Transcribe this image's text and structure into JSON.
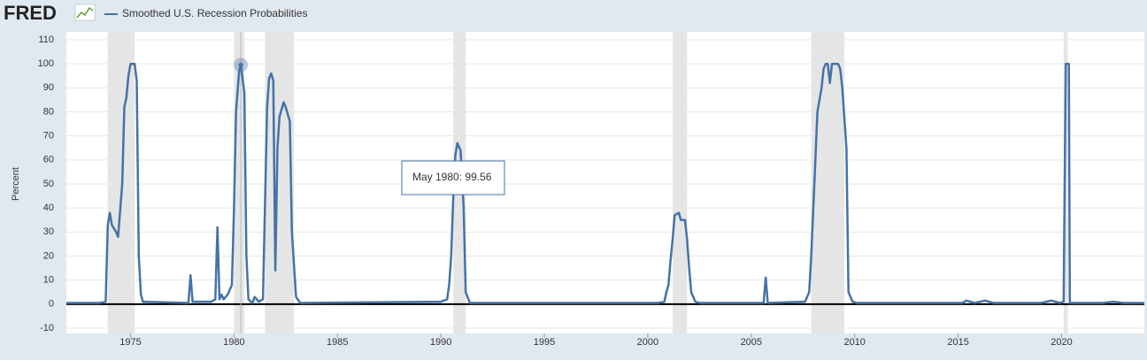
{
  "chart_data": {
    "type": "line",
    "logo": "FRED",
    "y_label": "Percent",
    "x": [
      1971.9,
      1973.5,
      1973.8,
      1973.9,
      1974.0,
      1974.1,
      1974.3,
      1974.4,
      1974.6,
      1974.7,
      1974.8,
      1974.9,
      1975.0,
      1975.2,
      1975.3,
      1975.4,
      1975.5,
      1975.6,
      1977.8,
      1977.9,
      1978.0,
      1978.9,
      1979.1,
      1979.2,
      1979.3,
      1979.4,
      1979.5,
      1979.7,
      1979.9,
      1980.0,
      1980.1,
      1980.25,
      1980.33,
      1980.5,
      1980.6,
      1980.7,
      1980.9,
      1981.0,
      1981.2,
      1981.4,
      1981.6,
      1981.7,
      1981.8,
      1981.9,
      1982.0,
      1982.1,
      1982.2,
      1982.4,
      1982.5,
      1982.7,
      1982.8,
      1983.0,
      1983.2,
      1990.0,
      1990.3,
      1990.4,
      1990.5,
      1990.6,
      1990.7,
      1990.8,
      1990.95,
      1991.1,
      1991.2,
      1991.4,
      2000.5,
      2000.8,
      2000.9,
      2001.0,
      2001.1,
      2001.2,
      2001.3,
      2001.5,
      2001.6,
      2001.8,
      2001.9,
      2002.0,
      2002.1,
      2002.3,
      2002.5,
      2005.6,
      2005.7,
      2005.8,
      2007.6,
      2007.8,
      2007.9,
      2008.1,
      2008.2,
      2008.4,
      2008.5,
      2008.6,
      2008.7,
      2008.8,
      2008.9,
      2009.2,
      2009.3,
      2009.4,
      2009.6,
      2009.7,
      2009.9,
      2010.1,
      2015.2,
      2015.4,
      2015.8,
      2016.3,
      2016.7,
      2019.0,
      2019.5,
      2019.9,
      2020.1,
      2020.2,
      2020.35,
      2020.4,
      2022.0,
      2022.5,
      2023.0,
      2024.0
    ],
    "series": [
      {
        "name": "Smoothed U.S. Recession Probabilities",
        "color": "#4572a7",
        "values": [
          0.5,
          0.5,
          1,
          33,
          38,
          33,
          30,
          28,
          50,
          82,
          86,
          95,
          100,
          100,
          93,
          20,
          4,
          1,
          0.5,
          12,
          1,
          1,
          2,
          32,
          2,
          4,
          2,
          4,
          8,
          40,
          80,
          97,
          99.56,
          88,
          20,
          2,
          0.5,
          3,
          1,
          2,
          82,
          94,
          96,
          93,
          14,
          65,
          78,
          84,
          82,
          76,
          30,
          3,
          0.5,
          1,
          2,
          8,
          20,
          45,
          62,
          67,
          64,
          40,
          5,
          0.5,
          0.5,
          1,
          5,
          8,
          18,
          27,
          37,
          38,
          35,
          35,
          27,
          15,
          5,
          1,
          0.5,
          0.5,
          11,
          0.5,
          1,
          5,
          20,
          60,
          80,
          90,
          98,
          100,
          100,
          92,
          100,
          100,
          98,
          90,
          65,
          5,
          1,
          0.5,
          0.5,
          1.5,
          0.5,
          1.5,
          0.5,
          0.5,
          1.5,
          0.5,
          1,
          100,
          100,
          0.5,
          0.5,
          1,
          0.5,
          0.5
        ]
      }
    ],
    "recessions": [
      [
        1973.9,
        1975.2
      ],
      [
        1980.0,
        1980.5
      ],
      [
        1981.5,
        1982.9
      ],
      [
        1990.6,
        1991.2
      ],
      [
        2001.2,
        2001.9
      ],
      [
        2007.9,
        2009.5
      ],
      [
        2020.1,
        2020.3
      ]
    ],
    "xlim": [
      1971.9,
      2024
    ],
    "xticks": [
      1975,
      1980,
      1985,
      1990,
      1995,
      2000,
      2005,
      2010,
      2015,
      2020
    ],
    "ylim": [
      -10,
      110
    ],
    "yticks": [
      -10,
      0,
      10,
      20,
      30,
      40,
      50,
      60,
      70,
      80,
      90,
      100,
      110
    ],
    "grid": true,
    "tooltip": {
      "label": "May 1980:",
      "x": 1980.33,
      "value": 99.56
    }
  }
}
